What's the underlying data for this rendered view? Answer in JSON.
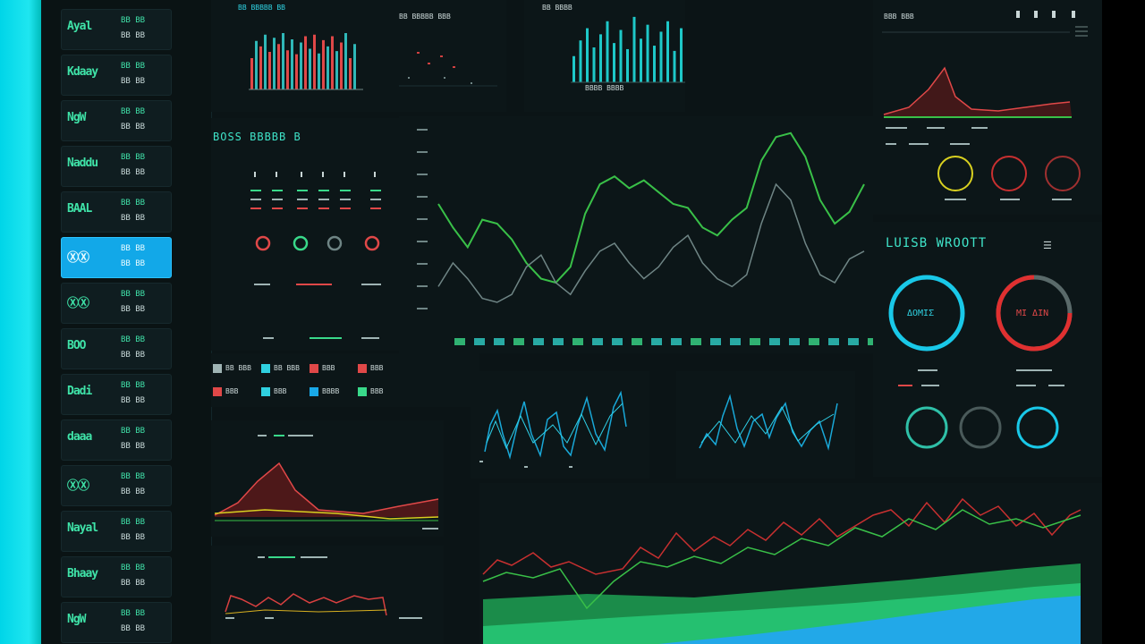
{
  "sidebar": {
    "items": [
      {
        "label": "Ayal",
        "v1": "BB BB",
        "v2": "BB BB",
        "active": false
      },
      {
        "label": "Kdaay",
        "v1": "BB BB",
        "v2": "BB BB",
        "active": false
      },
      {
        "label": "NgW",
        "v1": "BB BB",
        "v2": "BB BB",
        "active": false
      },
      {
        "label": "Naddu",
        "v1": "BB BB",
        "v2": "BB BB",
        "active": false
      },
      {
        "label": "BAAL",
        "v1": "BB BB",
        "v2": "BB BB",
        "active": false
      },
      {
        "label": "ⓍⓍ",
        "v1": "BB BB",
        "v2": "BB BB",
        "active": true
      },
      {
        "label": "ⓍⓍ",
        "v1": "BB BB",
        "v2": "BB BB",
        "active": false
      },
      {
        "label": "BOO",
        "v1": "BB BB",
        "v2": "BB BB",
        "active": false
      },
      {
        "label": "Dadi",
        "v1": "BB BB",
        "v2": "BB BB",
        "active": false
      },
      {
        "label": "daaa",
        "v1": "BB BB",
        "v2": "BB BB",
        "active": false
      },
      {
        "label": "ⓍⓍ",
        "v1": "BB BB",
        "v2": "BB BB",
        "active": false
      },
      {
        "label": "Nayal",
        "v1": "BB BB",
        "v2": "BB BB",
        "active": false
      },
      {
        "label": "Bhaay",
        "v1": "BB BB",
        "v2": "BB BB",
        "active": false
      },
      {
        "label": "NgW",
        "v1": "BB BB",
        "v2": "BB BB",
        "active": false
      }
    ]
  },
  "panels": {
    "metrics_title": "BOSS BBBBB B",
    "right_title": "LUISB WROOTT",
    "ring_big_left": "ΔΟΜΙΣ",
    "ring_big_right": "ΜΙ ΔΙΝ",
    "legend": [
      "BB BBB",
      "BB BBB",
      "BBB",
      "BBB",
      "BBB",
      "BBB",
      "BBBB",
      "BBB"
    ]
  },
  "colors": {
    "green": "#39d98a",
    "red": "#e04848",
    "cyan": "#19c8e8",
    "yellow": "#d8d020",
    "grey": "#6f8585",
    "active": "#12a8e8"
  },
  "chart_data": [
    {
      "type": "bar",
      "series": [
        {
          "color": "#e04848"
        },
        {
          "color": "#2fb8b8"
        }
      ],
      "values": [
        40,
        62,
        55,
        70,
        48,
        66,
        58,
        72,
        50,
        64,
        45,
        60,
        68,
        52,
        70,
        46,
        63,
        55,
        68,
        49,
        60,
        72,
        40,
        58
      ]
    },
    {
      "type": "bar",
      "series": [
        {
          "color": "#1ec8c8"
        }
      ],
      "values": [
        30,
        48,
        62,
        40,
        55,
        70,
        45,
        60,
        38,
        75,
        50,
        66,
        42,
        58,
        70,
        36,
        62,
        48,
        54,
        68
      ]
    },
    {
      "type": "line",
      "series": [
        {
          "name": "",
          "color": "#39c048",
          "values": [
            60,
            48,
            38,
            52,
            50,
            42,
            30,
            22,
            20,
            28,
            55,
            70,
            74,
            68,
            72,
            66,
            60,
            58,
            48,
            44,
            52,
            58,
            82,
            94,
            96,
            84,
            62,
            50,
            56,
            70
          ]
        },
        {
          "name": "",
          "color": "#6f8585",
          "values": [
            18,
            30,
            22,
            12,
            10,
            14,
            28,
            34,
            20,
            14,
            26,
            36,
            40,
            30,
            22,
            28,
            38,
            44,
            30,
            22,
            18,
            24,
            50,
            70,
            62,
            40,
            24,
            20,
            32,
            36
          ]
        }
      ]
    }
  ]
}
